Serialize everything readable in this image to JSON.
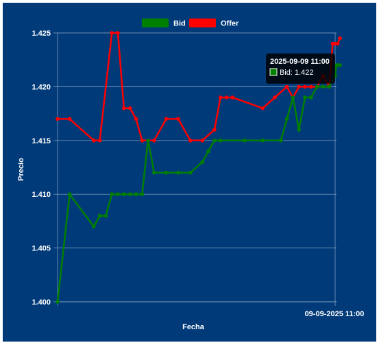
{
  "chart_data": {
    "type": "line",
    "title": "",
    "xlabel": "Fecha",
    "ylabel": "Precio",
    "ylim": [
      1.4,
      1.425
    ],
    "yticks": [
      "1.400",
      "1.405",
      "1.410",
      "1.415",
      "1.420",
      "1.425"
    ],
    "x_tick_label": "09-09-2025 11:00",
    "legend_position": "top-center",
    "grid": true,
    "colors": {
      "background": "#003a78",
      "Bid": "#008000",
      "Offer": "#ff0000"
    },
    "n_points": 47,
    "series": [
      {
        "name": "Bid",
        "color": "#008000",
        "values": [
          1.4,
          1.41,
          1.407,
          1.408,
          1.408,
          1.41,
          1.41,
          1.41,
          1.41,
          1.41,
          1.41,
          1.415,
          1.412,
          1.412,
          1.412,
          1.412,
          1.413,
          1.414,
          1.415,
          1.415,
          1.415,
          1.415,
          1.415,
          1.417,
          1.419,
          1.416,
          1.419,
          1.419,
          1.42,
          1.42,
          1.42,
          1.421,
          1.422,
          1.422,
          1.422
        ],
        "x_index": [
          0,
          2,
          6,
          7,
          8,
          9,
          10,
          11,
          12,
          13,
          14,
          15,
          16,
          18,
          20,
          22,
          24,
          25,
          26,
          27,
          31,
          34,
          37,
          38,
          39,
          40,
          41,
          42,
          43,
          44,
          45,
          46,
          46.2,
          46.5,
          46.8
        ]
      },
      {
        "name": "Offer",
        "color": "#ff0000",
        "values": [
          1.417,
          1.417,
          1.415,
          1.415,
          1.425,
          1.425,
          1.418,
          1.418,
          1.417,
          1.415,
          1.415,
          1.415,
          1.417,
          1.417,
          1.415,
          1.415,
          1.416,
          1.419,
          1.419,
          1.419,
          1.418,
          1.419,
          1.42,
          1.419,
          1.42,
          1.42,
          1.42,
          1.42,
          1.421,
          1.42,
          1.424,
          1.424,
          1.424,
          1.4245
        ],
        "x_index": [
          0,
          2,
          6,
          7,
          9,
          10,
          11,
          12,
          13,
          14,
          15,
          16,
          18,
          20,
          22,
          24,
          26,
          27,
          28,
          29,
          34,
          36,
          38,
          39,
          40,
          41,
          42,
          43,
          44,
          45,
          45.6,
          46,
          46.4,
          46.8
        ]
      }
    ],
    "tooltip": {
      "title": "2025-09-09 11:00",
      "series": "Bid",
      "value": "1.422",
      "text": "Bid: 1.422"
    }
  }
}
